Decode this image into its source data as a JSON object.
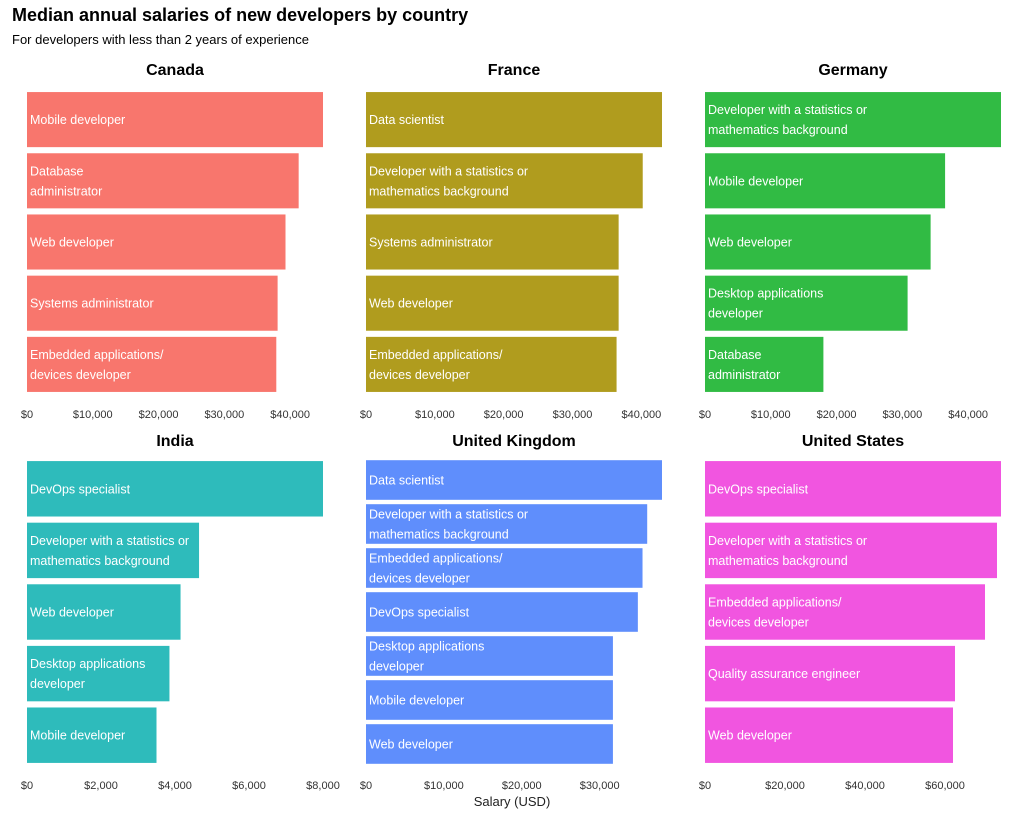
{
  "title": "Median annual salaries of new developers by country",
  "subtitle": "For developers with less than 2 years of experience",
  "xlabel": "Salary (USD)",
  "chart_data": {
    "type": "bar",
    "orientation": "horizontal",
    "xlabel": "Salary (USD)",
    "panels": [
      {
        "country": "Canada",
        "color": "#F8766D",
        "xlim": [
          0,
          45000
        ],
        "ticks": [
          0,
          10000,
          20000,
          30000,
          40000
        ],
        "tick_labels": [
          "$0",
          "$10,000",
          "$20,000",
          "$30,000",
          "$40,000"
        ],
        "bars": [
          {
            "label": "Mobile developer",
            "value": 45000
          },
          {
            "label": "Database\nadministrator",
            "value": 41300
          },
          {
            "label": "Web developer",
            "value": 39300
          },
          {
            "label": "Systems administrator",
            "value": 38100
          },
          {
            "label": "Embedded applications/\ndevices developer",
            "value": 37900
          }
        ]
      },
      {
        "country": "France",
        "color": "#B09C1E",
        "xlim": [
          0,
          43000
        ],
        "ticks": [
          0,
          10000,
          20000,
          30000,
          40000
        ],
        "tick_labels": [
          "$0",
          "$10,000",
          "$20,000",
          "$30,000",
          "$40,000"
        ],
        "bars": [
          {
            "label": "Data scientist",
            "value": 43000
          },
          {
            "label": "Developer with a statistics or\nmathematics background",
            "value": 40200
          },
          {
            "label": "Systems administrator",
            "value": 36700
          },
          {
            "label": "Web developer",
            "value": 36700
          },
          {
            "label": "Embedded applications/\ndevices developer",
            "value": 36400
          }
        ]
      },
      {
        "country": "Germany",
        "color": "#31BB44",
        "xlim": [
          0,
          45000
        ],
        "ticks": [
          0,
          10000,
          20000,
          30000,
          40000
        ],
        "tick_labels": [
          "$0",
          "$10,000",
          "$20,000",
          "$30,000",
          "$40,000"
        ],
        "bars": [
          {
            "label": "Developer with a statistics or\nmathematics background",
            "value": 45000
          },
          {
            "label": "Mobile developer",
            "value": 36500
          },
          {
            "label": "Web developer",
            "value": 34300
          },
          {
            "label": "Desktop applications\ndeveloper",
            "value": 30800
          },
          {
            "label": "Database\nadministrator",
            "value": 18000
          }
        ]
      },
      {
        "country": "India",
        "color": "#2EBBBB",
        "xlim": [
          0,
          8000
        ],
        "ticks": [
          0,
          2000,
          4000,
          6000,
          8000
        ],
        "tick_labels": [
          "$0",
          "$2,000",
          "$4,000",
          "$6,000",
          "$8,000"
        ],
        "bars": [
          {
            "label": "DevOps specialist",
            "value": 8000
          },
          {
            "label": "Developer with a statistics or\nmathematics background",
            "value": 4650
          },
          {
            "label": "Web developer",
            "value": 4150
          },
          {
            "label": "Desktop applications\ndeveloper",
            "value": 3850
          },
          {
            "label": "Mobile developer",
            "value": 3500
          }
        ]
      },
      {
        "country": "United Kingdom",
        "color": "#5F8EFC",
        "xlim": [
          0,
          38000
        ],
        "ticks": [
          0,
          10000,
          20000,
          30000
        ],
        "tick_labels": [
          "$0",
          "$10,000",
          "$20,000",
          "$30,000"
        ],
        "bars": [
          {
            "label": "Data scientist",
            "value": 38000
          },
          {
            "label": "Developer with a statistics or\nmathematics background",
            "value": 36100
          },
          {
            "label": "Embedded applications/\ndevices developer",
            "value": 35500
          },
          {
            "label": "DevOps specialist",
            "value": 34900
          },
          {
            "label": "Desktop applications\ndeveloper",
            "value": 31700
          },
          {
            "label": "Mobile developer",
            "value": 31700
          },
          {
            "label": "Web developer",
            "value": 31700
          }
        ]
      },
      {
        "country": "United States",
        "color": "#F155E0",
        "xlim": [
          0,
          74000
        ],
        "ticks": [
          0,
          20000,
          40000,
          60000
        ],
        "tick_labels": [
          "$0",
          "$20,000",
          "$40,000",
          "$60,000"
        ],
        "bars": [
          {
            "label": "DevOps specialist",
            "value": 74000
          },
          {
            "label": "Developer with a statistics or\nmathematics background",
            "value": 73000
          },
          {
            "label": "Embedded applications/\ndevices developer",
            "value": 70000
          },
          {
            "label": "Quality assurance engineer",
            "value": 62500
          },
          {
            "label": "Web developer",
            "value": 62000
          }
        ]
      }
    ]
  }
}
